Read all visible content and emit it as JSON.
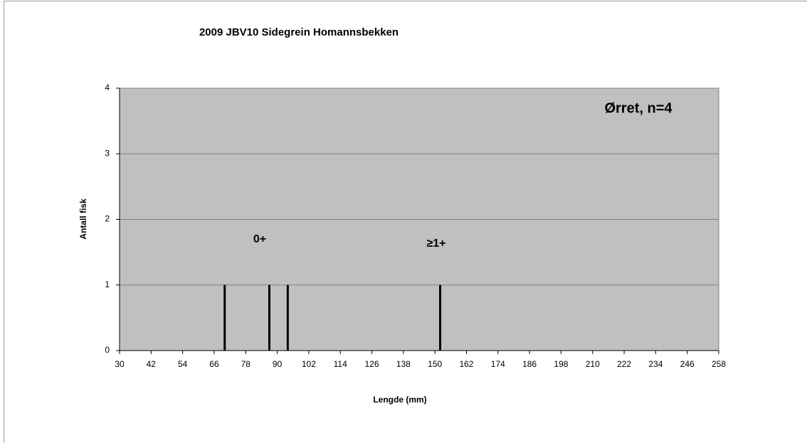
{
  "chart_data": {
    "type": "bar",
    "title": "2009 JBV10 Sidegrein Homannsbekken",
    "x_label": "Lengde (mm)",
    "y_label": "Antall fisk",
    "annotations": [
      "Ørret, n=4",
      "0+",
      "≥1+"
    ],
    "x": [
      70,
      87,
      94,
      152
    ],
    "values": [
      1,
      1,
      1,
      1
    ],
    "color": "#000000",
    "xlim": [
      30,
      258
    ],
    "xticks": [
      30,
      42,
      54,
      66,
      78,
      90,
      102,
      114,
      126,
      138,
      150,
      162,
      174,
      186,
      198,
      210,
      222,
      234,
      246,
      258
    ],
    "ylim": [
      0,
      4
    ],
    "yticks": [
      0,
      1,
      2,
      3,
      4
    ],
    "grid": true
  }
}
